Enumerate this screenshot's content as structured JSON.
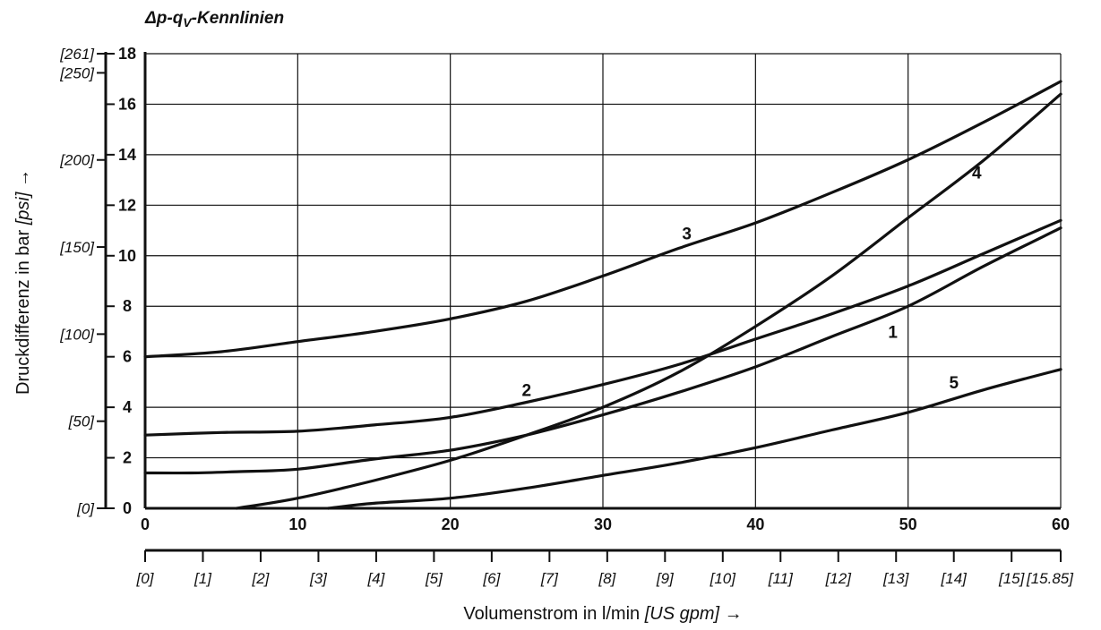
{
  "chart_data": {
    "type": "line",
    "title_prefix": "Δp-q",
    "title_sub": "V",
    "title_suffix": "-Kennlinien",
    "xlabel_main": "Volumenstrom in l/min ",
    "xlabel_unit": "[US gpm]",
    "xlabel_arrow": " →",
    "ylabel_main": "Druckdifferenz in bar ",
    "ylabel_unit": "[psi]",
    "ylabel_arrow": " →",
    "xlim": [
      0,
      60
    ],
    "ylim": [
      0,
      18
    ],
    "x_ticks": [
      0,
      10,
      20,
      30,
      40,
      50,
      60
    ],
    "x_tick_labels": [
      "0",
      "10",
      "20",
      "30",
      "40",
      "50",
      "60"
    ],
    "y_ticks": [
      0,
      2,
      4,
      6,
      8,
      10,
      12,
      14,
      16,
      18
    ],
    "y_tick_labels": [
      "0",
      "2",
      "4",
      "6",
      "8",
      "10",
      "12",
      "14",
      "16",
      "18"
    ],
    "gpm_ticks": [
      0,
      1,
      2,
      3,
      4,
      5,
      6,
      7,
      8,
      9,
      10,
      11,
      12,
      13,
      14,
      15,
      15.85
    ],
    "gpm_tick_labels": [
      "[0]",
      "[1]",
      "[2]",
      "[3]",
      "[4]",
      "[5]",
      "[6]",
      "[7]",
      "[8]",
      "[9]",
      "[10]",
      "[11]",
      "[12]",
      "[13]",
      "[14]",
      "[15]",
      "[15.85]"
    ],
    "psi_ticks": [
      0,
      50,
      100,
      150,
      200,
      250,
      261
    ],
    "psi_tick_labels": [
      "[0]",
      "[50]",
      "[100]",
      "[150]",
      "[200]",
      "[250]",
      "[261]"
    ],
    "grid": true,
    "series": [
      {
        "name": "1",
        "label_at": [
          49,
          7
        ],
        "x": [
          0,
          3,
          6,
          10,
          15,
          20,
          25,
          30,
          35,
          40,
          45,
          50,
          55,
          60
        ],
        "y": [
          1.4,
          1.4,
          1.45,
          1.55,
          1.95,
          2.3,
          2.9,
          3.7,
          4.6,
          5.6,
          6.8,
          8.0,
          9.6,
          11.1
        ]
      },
      {
        "name": "2",
        "label_at": [
          25,
          4.7
        ],
        "x": [
          0,
          5,
          10,
          15,
          20,
          25,
          30,
          35,
          40,
          45,
          50,
          55,
          60
        ],
        "y": [
          2.9,
          3.0,
          3.05,
          3.3,
          3.6,
          4.2,
          4.9,
          5.7,
          6.7,
          7.7,
          8.8,
          10.1,
          11.4
        ]
      },
      {
        "name": "3",
        "label_at": [
          35.5,
          10.9
        ],
        "x": [
          0,
          5,
          10,
          15,
          20,
          25,
          30,
          35,
          40,
          45,
          50,
          55,
          60
        ],
        "y": [
          6.0,
          6.2,
          6.6,
          7.0,
          7.5,
          8.2,
          9.2,
          10.3,
          11.3,
          12.5,
          13.8,
          15.3,
          16.9
        ]
      },
      {
        "name": "4",
        "label_at": [
          54.5,
          13.3
        ],
        "x": [
          6,
          10,
          15,
          20,
          25,
          30,
          35,
          40,
          45,
          50,
          55,
          60
        ],
        "y": [
          0,
          0.4,
          1.1,
          1.9,
          2.9,
          4.0,
          5.4,
          7.2,
          9.2,
          11.5,
          13.8,
          16.4
        ]
      },
      {
        "name": "5",
        "label_at": [
          53,
          5.0
        ],
        "x": [
          12,
          15,
          20,
          25,
          30,
          35,
          40,
          45,
          50,
          55,
          60
        ],
        "y": [
          0,
          0.2,
          0.4,
          0.8,
          1.3,
          1.8,
          2.4,
          3.1,
          3.8,
          4.7,
          5.5
        ]
      }
    ]
  }
}
